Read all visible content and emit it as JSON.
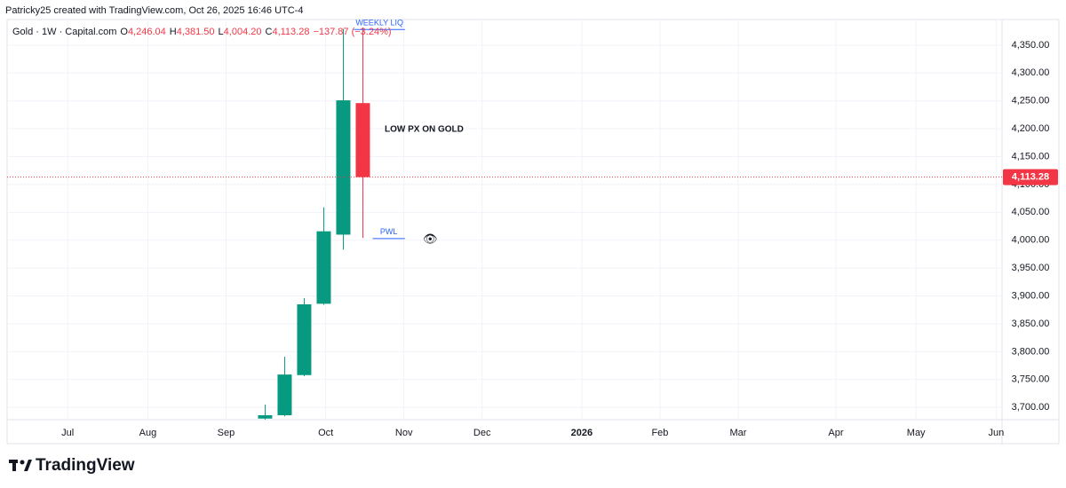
{
  "chart_data": {
    "type": "candlestick",
    "credit": "Patricky25 created with TradingView.com, Oct 26, 2025 16:46 UTC-4",
    "symbol": "Gold · 1W · Capital.com",
    "ohlc": [
      {
        "label": "O",
        "value": "4,246.04"
      },
      {
        "label": "H",
        "value": "4,381.50"
      },
      {
        "label": "L",
        "value": "4,004.20"
      },
      {
        "label": "C",
        "value": "4,113.28"
      }
    ],
    "change": "−137.87 (−3.24%)",
    "x": [
      0,
      1,
      2,
      3,
      4,
      5
    ],
    "open": [
      3680,
      3686,
      3758,
      3886,
      4010,
      4246.04
    ],
    "high": [
      3705,
      3791,
      3896,
      4059,
      4379,
      4381.5
    ],
    "low": [
      3678,
      3684,
      3756,
      3884,
      3983,
      4004.2
    ],
    "close": [
      3686,
      3759,
      3885,
      4016,
      4251,
      4113.28
    ],
    "up_color": "#089981",
    "down_color": "#f23645",
    "xlim": [
      -13.2,
      37.7
    ],
    "xticks": [
      {
        "value": -10.1,
        "label": "Jul"
      },
      {
        "value": -6.0,
        "label": "Aug"
      },
      {
        "value": -2.0,
        "label": "Sep"
      },
      {
        "value": 3.1,
        "label": "Oct"
      },
      {
        "value": 7.1,
        "label": "Nov"
      },
      {
        "value": 11.1,
        "label": "Dec"
      },
      {
        "value": 16.2,
        "label": "2026"
      },
      {
        "value": 20.2,
        "label": "Feb"
      },
      {
        "value": 24.2,
        "label": "Mar"
      },
      {
        "value": 29.2,
        "label": "Apr"
      },
      {
        "value": 33.3,
        "label": "May"
      },
      {
        "value": 37.4,
        "label": "Jun"
      }
    ],
    "ylim": [
      3678,
      4396
    ],
    "yticks": [
      {
        "value": 3700,
        "label": "3,700.00"
      },
      {
        "value": 3750,
        "label": "3,750.00"
      },
      {
        "value": 3800,
        "label": "3,800.00"
      },
      {
        "value": 3850,
        "label": "3,850.00"
      },
      {
        "value": 3900,
        "label": "3,900.00"
      },
      {
        "value": 3950,
        "label": "3,950.00"
      },
      {
        "value": 4000,
        "label": "4,000.00"
      },
      {
        "value": 4050,
        "label": "4,050.00"
      },
      {
        "value": 4100,
        "label": "4,100.00"
      },
      {
        "value": 4150,
        "label": "4,150.00"
      },
      {
        "value": 4200,
        "label": "4,200.00"
      },
      {
        "value": 4250,
        "label": "4,250.00"
      },
      {
        "value": 4300,
        "label": "4,300.00"
      },
      {
        "value": 4350,
        "label": "4,350.00"
      }
    ],
    "grid": true,
    "last_price": {
      "value": 4113.28,
      "label": "4,113.28"
    },
    "levels": [
      {
        "label": "WEEKLY LIQ",
        "value": 4378,
        "x": [
          4.55,
          7.15
        ],
        "color": "#2962ff"
      },
      {
        "label": "PWL",
        "value": 4003,
        "x": [
          5.5,
          7.15
        ],
        "color": "#2962ff"
      }
    ],
    "note": "LOW PX ON GOLD",
    "brand": "TradingView"
  }
}
